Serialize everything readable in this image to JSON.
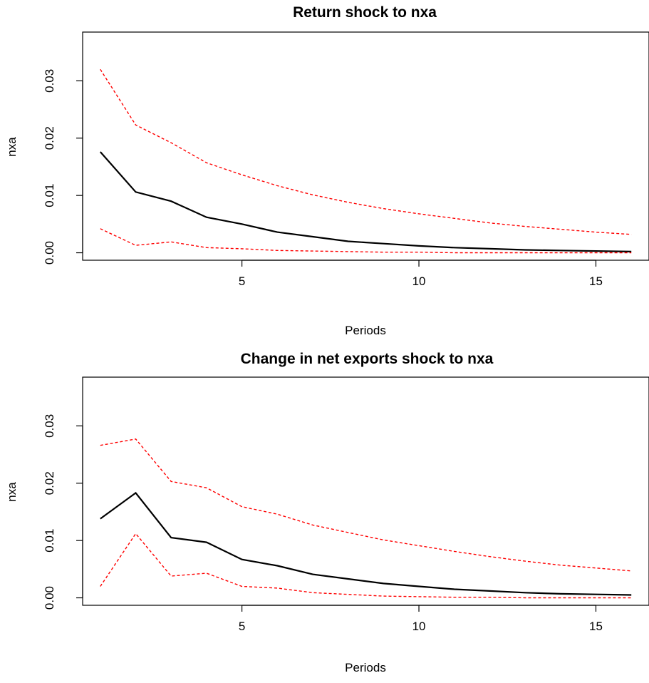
{
  "chart_data": [
    {
      "type": "line",
      "title": "Return shock to nxa",
      "xlabel": "Periods",
      "ylabel": "nxa",
      "xlim": [
        0.5,
        16.5
      ],
      "ylim": [
        -0.0013,
        0.0385
      ],
      "x_ticks": [
        5,
        10,
        15
      ],
      "x_tick_labels": [
        "5",
        "10",
        "15"
      ],
      "y_ticks": [
        0,
        0.01,
        0.02,
        0.03
      ],
      "y_tick_labels": [
        "0.00",
        "0.01",
        "0.02",
        "0.03"
      ],
      "grid": false,
      "x": [
        1,
        2,
        3,
        4,
        5,
        6,
        7,
        8,
        9,
        10,
        11,
        12,
        13,
        14,
        15,
        16
      ],
      "series": [
        {
          "role": "estimate",
          "color": "#000000",
          "dash": "solid",
          "values": [
            0.0176,
            0.0106,
            0.009,
            0.0062,
            0.005,
            0.0036,
            0.0028,
            0.002,
            0.0016,
            0.0012,
            0.0009,
            0.0007,
            0.0005,
            0.0004,
            0.0003,
            0.0002
          ]
        },
        {
          "role": "upper-band",
          "color": "#ff0000",
          "dash": "dashed",
          "values": [
            0.032,
            0.0223,
            0.0192,
            0.0157,
            0.0136,
            0.0117,
            0.0101,
            0.0088,
            0.0077,
            0.0068,
            0.006,
            0.0052,
            0.0046,
            0.0041,
            0.0036,
            0.0032
          ]
        },
        {
          "role": "lower-band",
          "color": "#ff0000",
          "dash": "dashed",
          "values": [
            0.0042,
            0.0013,
            0.0019,
            0.0009,
            0.0007,
            0.0004,
            0.0003,
            0.0002,
            0.0001,
            0.0001,
            0.0,
            0.0,
            0.0,
            0.0,
            0.0,
            0.0
          ]
        }
      ]
    },
    {
      "type": "line",
      "title": "Change in net exports shock to nxa",
      "xlabel": "Periods",
      "ylabel": "nxa",
      "xlim": [
        0.5,
        16.5
      ],
      "ylim": [
        -0.0013,
        0.0385
      ],
      "x_ticks": [
        5,
        10,
        15
      ],
      "x_tick_labels": [
        "5",
        "10",
        "15"
      ],
      "y_ticks": [
        0,
        0.01,
        0.02,
        0.03
      ],
      "y_tick_labels": [
        "0.00",
        "0.01",
        "0.02",
        "0.03"
      ],
      "grid": false,
      "x": [
        1,
        2,
        3,
        4,
        5,
        6,
        7,
        8,
        9,
        10,
        11,
        12,
        13,
        14,
        15,
        16
      ],
      "series": [
        {
          "role": "estimate",
          "color": "#000000",
          "dash": "solid",
          "values": [
            0.0138,
            0.0183,
            0.0105,
            0.0097,
            0.0067,
            0.0056,
            0.0041,
            0.0033,
            0.0025,
            0.002,
            0.0015,
            0.0012,
            0.0009,
            0.0007,
            0.0006,
            0.0005
          ]
        },
        {
          "role": "upper-band",
          "color": "#ff0000",
          "dash": "dashed",
          "values": [
            0.0266,
            0.0277,
            0.0203,
            0.0192,
            0.0159,
            0.0146,
            0.0127,
            0.0114,
            0.0101,
            0.0091,
            0.0081,
            0.0072,
            0.0064,
            0.0057,
            0.0052,
            0.0047
          ]
        },
        {
          "role": "lower-band",
          "color": "#ff0000",
          "dash": "dashed",
          "values": [
            0.002,
            0.0112,
            0.0038,
            0.0043,
            0.002,
            0.0017,
            0.0009,
            0.0006,
            0.0003,
            0.0002,
            0.0001,
            0.0001,
            0.0,
            0.0,
            0.0,
            0.0
          ]
        }
      ]
    }
  ]
}
